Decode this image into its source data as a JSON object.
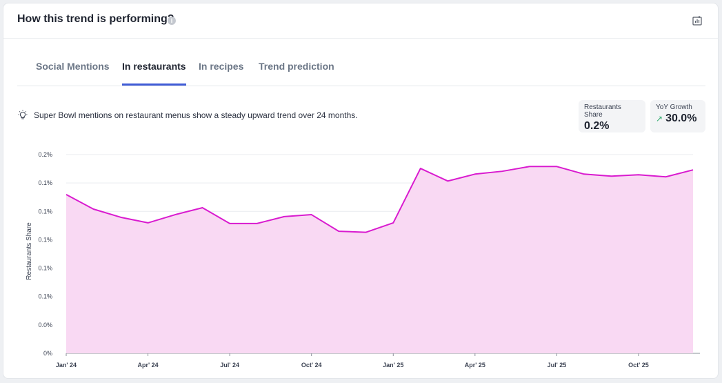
{
  "header": {
    "title": "How this trend is performing?",
    "info_icon": "info-icon",
    "export_icon": "chart-export-icon"
  },
  "tabs": [
    {
      "label": "Social Mentions",
      "active": false
    },
    {
      "label": "In restaurants",
      "active": true
    },
    {
      "label": "In recipes",
      "active": false
    },
    {
      "label": "Trend prediction",
      "active": false
    }
  ],
  "insight": {
    "icon": "lightbulb-icon",
    "text": "Super Bowl mentions on restaurant menus show a steady upward trend over 24 months."
  },
  "stats": {
    "share_label": "Restaurants Share",
    "share_value": "0.2%",
    "growth_label": "YoY Growth",
    "growth_value": "30.0%",
    "growth_icon": "trend-up-arrow-icon"
  },
  "colors": {
    "line": "#d91bcf",
    "fill": "#f9d9f3",
    "accent": "#3f5bd6",
    "positive": "#2aa86a"
  },
  "chart_data": {
    "type": "area",
    "ylabel": "Restaurants Share",
    "xlabel": "",
    "y_tick_labels": [
      "0%",
      "0.0%",
      "0.1%",
      "0.1%",
      "0.1%",
      "0.1%",
      "0.1%",
      "0.2%"
    ],
    "y_tick_values": [
      0,
      0.025,
      0.05,
      0.075,
      0.1,
      0.125,
      0.15,
      0.175
    ],
    "ylim": [
      0,
      0.175
    ],
    "x_tick_labels": [
      {
        "label": "Jan' 24",
        "index": 0
      },
      {
        "label": "Apr' 24",
        "index": 3
      },
      {
        "label": "Jul' 24",
        "index": 6
      },
      {
        "label": "Oct' 24",
        "index": 9
      },
      {
        "label": "Jan' 25",
        "index": 12
      },
      {
        "label": "Apr' 25",
        "index": 15
      },
      {
        "label": "Jul' 25",
        "index": 18
      },
      {
        "label": "Oct' 25",
        "index": 21
      }
    ],
    "x": [
      "Jan 24",
      "Feb 24",
      "Mar 24",
      "Apr 24",
      "May 24",
      "Jun 24",
      "Jul 24",
      "Aug 24",
      "Sep 24",
      "Oct 24",
      "Nov 24",
      "Dec 24",
      "Jan 25",
      "Feb 25",
      "Mar 25",
      "Apr 25",
      "May 25",
      "Jun 25",
      "Jul 25",
      "Aug 25",
      "Sep 25",
      "Oct 25",
      "Nov 25",
      "Dec 25"
    ],
    "series": [
      {
        "values": [
          0.1398,
          0.127,
          0.1198,
          0.1149,
          0.1221,
          0.1282,
          0.1143,
          0.1143,
          0.1204,
          0.1221,
          0.1075,
          0.1066,
          0.1149,
          0.1628,
          0.1517,
          0.1578,
          0.1603,
          0.1645,
          0.1645,
          0.1578,
          0.156,
          0.1572,
          0.1554,
          0.1615
        ]
      }
    ],
    "grid": true,
    "legend": "none"
  }
}
